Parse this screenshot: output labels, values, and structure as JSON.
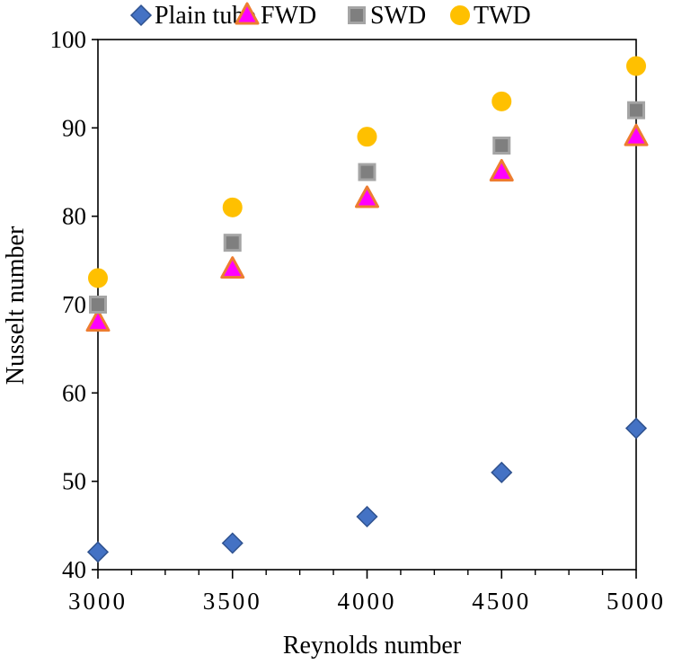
{
  "chart_data": {
    "type": "scatter",
    "title": "",
    "xlabel": "Reynolds number",
    "ylabel": "Nusselt number",
    "xlim": [
      3000,
      5000
    ],
    "ylim": [
      40,
      100
    ],
    "x_ticks": [
      3000,
      3500,
      4000,
      4500,
      5000
    ],
    "y_ticks": [
      40,
      50,
      60,
      70,
      80,
      90,
      100
    ],
    "x_tick_labels": [
      "3000",
      "3500",
      "4000",
      "4500",
      "5000"
    ],
    "y_tick_labels": [
      "40",
      "50",
      "60",
      "70",
      "80",
      "90",
      "100"
    ],
    "x_minor_ticks": [
      3125,
      3250,
      3375,
      3625,
      3750,
      3875,
      4125,
      4250,
      4375,
      4625,
      4750,
      4875
    ],
    "grid": false,
    "legend_position": "top",
    "series": [
      {
        "name": "Plain tube",
        "marker": "diamond",
        "color": "#4472C4",
        "stroke": "#2F528F",
        "x": [
          3000,
          3500,
          4000,
          4500,
          5000
        ],
        "y": [
          42,
          43,
          46,
          51,
          56
        ]
      },
      {
        "name": "FWD",
        "marker": "triangle",
        "color": "#FF00FF",
        "stroke": "#ED7D31",
        "x": [
          3000,
          3500,
          4000,
          4500,
          5000
        ],
        "y": [
          68,
          74,
          82,
          85,
          89
        ]
      },
      {
        "name": "SWD",
        "marker": "square",
        "color": "#7F7F7F",
        "stroke": "#A5A5A5",
        "x": [
          3000,
          3500,
          4000,
          4500,
          5000
        ],
        "y": [
          70,
          77,
          85,
          88,
          92
        ]
      },
      {
        "name": "TWD",
        "marker": "circle",
        "color": "#FFC000",
        "stroke": "#FFC000",
        "x": [
          3000,
          3500,
          4000,
          4500,
          5000
        ],
        "y": [
          73,
          81,
          89,
          93,
          97
        ]
      }
    ]
  }
}
